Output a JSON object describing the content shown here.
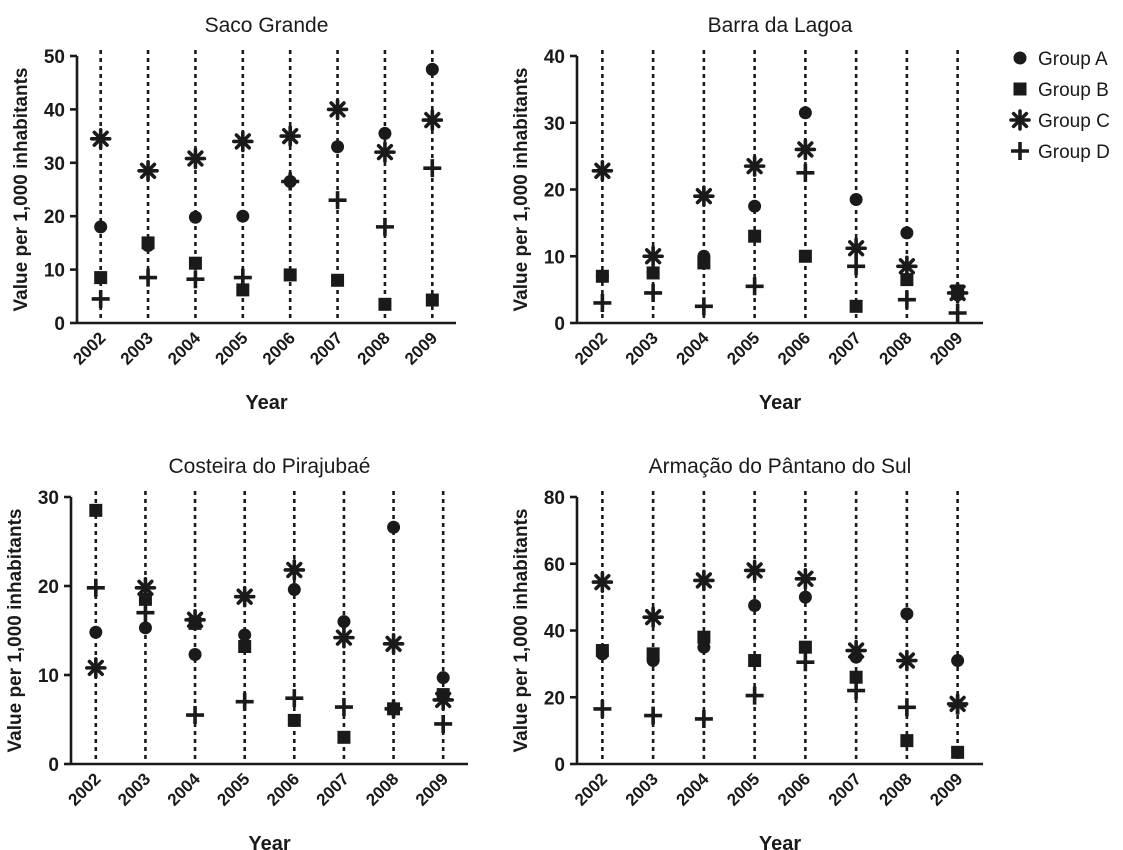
{
  "legend": {
    "position": "top-right",
    "entries": [
      {
        "label": "Group A",
        "marker": "circle"
      },
      {
        "label": "Group B",
        "marker": "square"
      },
      {
        "label": "Group C",
        "marker": "star"
      },
      {
        "label": "Group D",
        "marker": "plus"
      }
    ]
  },
  "colors": {
    "marker": "#1a1a1a",
    "axis": "#1a1a1a",
    "background": "#ffffff"
  },
  "chart_data": [
    {
      "type": "scatter",
      "title": "Saco Grande",
      "xlabel": "Year",
      "ylabel": "Value per 1,000 inhabitants",
      "categories": [
        "2002",
        "2003",
        "2004",
        "2005",
        "2006",
        "2007",
        "2008",
        "2009"
      ],
      "ylim": [
        0,
        50
      ],
      "yticks": [
        0,
        10,
        20,
        30,
        40,
        50
      ],
      "grid": "dotted vertical line per year",
      "series": [
        {
          "name": "Group A",
          "marker": "circle",
          "values": [
            18,
            14.5,
            19.8,
            20,
            26.5,
            33,
            35.5,
            47.5
          ]
        },
        {
          "name": "Group B",
          "marker": "square",
          "values": [
            8.5,
            15,
            11.2,
            6.2,
            9,
            8,
            3.5,
            4.3
          ]
        },
        {
          "name": "Group C",
          "marker": "star",
          "values": [
            34.5,
            28.5,
            30.8,
            34,
            35,
            40,
            32,
            38
          ]
        },
        {
          "name": "Group D",
          "marker": "plus",
          "values": [
            4.5,
            8.5,
            8.2,
            8.5,
            26.5,
            23,
            18,
            29
          ]
        }
      ]
    },
    {
      "type": "scatter",
      "title": "Barra da Lagoa",
      "xlabel": "Year",
      "ylabel": "Value per 1,000 inhabitants",
      "categories": [
        "2002",
        "2003",
        "2004",
        "2005",
        "2006",
        "2007",
        "2008",
        "2009"
      ],
      "ylim": [
        0,
        40
      ],
      "yticks": [
        0,
        10,
        20,
        30,
        40
      ],
      "grid": "dotted vertical line per year",
      "series": [
        {
          "name": "Group A",
          "marker": "circle",
          "values": [
            7,
            7.5,
            10,
            17.5,
            31.5,
            18.5,
            13.5,
            4.2
          ]
        },
        {
          "name": "Group B",
          "marker": "square",
          "values": [
            7,
            7.5,
            9,
            13,
            10,
            2.5,
            6.5,
            4.8
          ]
        },
        {
          "name": "Group C",
          "marker": "star",
          "values": [
            22.8,
            10,
            19,
            23.5,
            26,
            11.2,
            8.5,
            4.5
          ]
        },
        {
          "name": "Group D",
          "marker": "plus",
          "values": [
            3,
            4.5,
            2.5,
            5.5,
            22.5,
            8.5,
            3.5,
            1.5
          ]
        }
      ]
    },
    {
      "type": "scatter",
      "title": "Costeira do Pirajubaé",
      "xlabel": "Year",
      "ylabel": "Value per 1,000 inhabitants",
      "categories": [
        "2002",
        "2003",
        "2004",
        "2005",
        "2006",
        "2007",
        "2008",
        "2009"
      ],
      "ylim": [
        0,
        30
      ],
      "yticks": [
        0,
        10,
        20,
        30
      ],
      "grid": "dotted vertical line per year",
      "series": [
        {
          "name": "Group A",
          "marker": "circle",
          "values": [
            14.8,
            15.3,
            12.3,
            14.5,
            19.6,
            16,
            26.6,
            9.7
          ]
        },
        {
          "name": "Group B",
          "marker": "square",
          "values": [
            28.5,
            18.5,
            15.8,
            13.2,
            4.9,
            3,
            6.2,
            7.8
          ]
        },
        {
          "name": "Group C",
          "marker": "star",
          "values": [
            10.8,
            19.8,
            16.2,
            18.8,
            21.8,
            14.2,
            13.5,
            7.2
          ]
        },
        {
          "name": "Group D",
          "marker": "plus",
          "values": [
            19.8,
            17,
            5.5,
            7,
            7.4,
            6.4,
            6.2,
            4.5
          ]
        }
      ]
    },
    {
      "type": "scatter",
      "title": "Armação do Pântano do Sul",
      "xlabel": "Year",
      "ylabel": "Value per 1,000 inhabitants",
      "categories": [
        "2002",
        "2003",
        "2004",
        "2005",
        "2006",
        "2007",
        "2008",
        "2009"
      ],
      "ylim": [
        0,
        80
      ],
      "yticks": [
        0,
        20,
        40,
        60,
        80
      ],
      "grid": "dotted vertical line per year",
      "series": [
        {
          "name": "Group A",
          "marker": "circle",
          "values": [
            33,
            31,
            35,
            47.5,
            50,
            32,
            45,
            31
          ]
        },
        {
          "name": "Group B",
          "marker": "square",
          "values": [
            34,
            33,
            38,
            31,
            35,
            26,
            7,
            3.5
          ]
        },
        {
          "name": "Group C",
          "marker": "star",
          "values": [
            54.5,
            44,
            55,
            58,
            55.5,
            34,
            31,
            18
          ]
        },
        {
          "name": "Group D",
          "marker": "plus",
          "values": [
            16.5,
            14.5,
            13.5,
            20.5,
            30.5,
            22,
            17,
            17.5
          ]
        }
      ]
    }
  ]
}
